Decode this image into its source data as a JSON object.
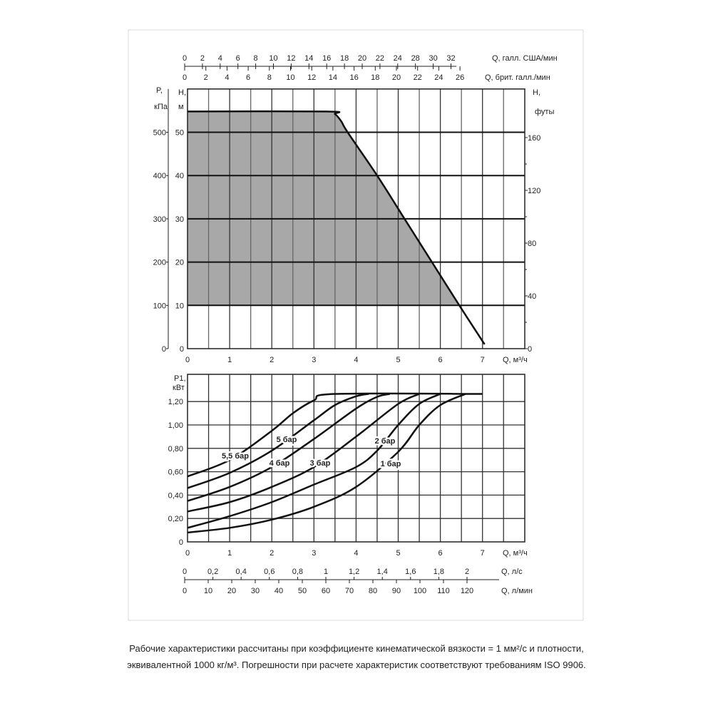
{
  "chart_data": [
    {
      "type": "area",
      "top_axes": [
        {
          "label": "Q, галл. США/мин",
          "tick_labels": [
            "0",
            "2",
            "4",
            "6",
            "8",
            "10",
            "12",
            "14",
            "16",
            "18",
            "20",
            "22",
            "24",
            "28",
            "30",
            "32"
          ]
        },
        {
          "label": "Q, брит. галл./мин",
          "tick_labels": [
            "0",
            "2",
            "4",
            "6",
            "8",
            "10",
            "12",
            "14",
            "16",
            "18",
            "20",
            "22",
            "24",
            "26"
          ]
        }
      ],
      "xlabel": "Q, м³/ч",
      "x_ticks": [
        0,
        1,
        2,
        3,
        4,
        5,
        6,
        7
      ],
      "xlim": [
        0,
        8
      ],
      "ylabel": [
        "H,",
        "м"
      ],
      "y_ticks": [
        0,
        10,
        20,
        30,
        40,
        50
      ],
      "ylim": [
        0,
        60
      ],
      "ylabel_pressure": [
        "P,",
        "кПа"
      ],
      "pressure_ticks": [
        0,
        100,
        200,
        300,
        400,
        500
      ],
      "ylabel_right": [
        "H,",
        "футы"
      ],
      "right_ticks": [
        0,
        40,
        80,
        120,
        160
      ],
      "grid": true,
      "shaded_region_min_H": 10,
      "fill_color": "#a8a8a8",
      "series": [
        {
          "x": [
            0,
            3.3,
            3.5,
            3.65,
            3.8,
            4.5,
            5.15,
            5.8,
            6.45,
            7.05
          ],
          "y": [
            54.8,
            54.8,
            54.2,
            52.5,
            50,
            40,
            30,
            20,
            10,
            1
          ]
        }
      ]
    },
    {
      "type": "line",
      "ylabel": [
        "P1,",
        "кВт"
      ],
      "y_ticks": [
        "0",
        "0,20",
        "0,40",
        "0,60",
        "0,80",
        "1,00",
        "1,20"
      ],
      "ylim": [
        0,
        1.43
      ],
      "xlabel": "Q, м³/ч",
      "x_ticks": [
        0,
        1,
        2,
        3,
        4,
        5,
        6,
        7
      ],
      "xlim": [
        0,
        8
      ],
      "grid": true,
      "bottom_axes": [
        {
          "label": "Q, л/с",
          "tick_labels": [
            "0",
            "0,2",
            "0,4",
            "0,6",
            "0,8",
            "1",
            "1,2",
            "1,4",
            "1,6",
            "1,8",
            "2"
          ]
        },
        {
          "label": "Q, л/мин",
          "tick_labels": [
            "0",
            "10",
            "20",
            "30",
            "40",
            "50",
            "60",
            "70",
            "80",
            "90",
            "100",
            "110",
            "120"
          ]
        }
      ],
      "series": [
        {
          "name": "5,5 бар",
          "x": [
            0,
            1,
            2,
            2.5,
            3,
            3.5,
            7
          ],
          "y": [
            0.56,
            0.7,
            0.95,
            1.1,
            1.21,
            1.265,
            1.265
          ]
        },
        {
          "name": "5 бар",
          "x": [
            0,
            1,
            2,
            3,
            3.5,
            4,
            4.3
          ],
          "y": [
            0.46,
            0.59,
            0.78,
            1.04,
            1.17,
            1.245,
            1.265
          ]
        },
        {
          "name": "4 бар",
          "x": [
            0,
            1,
            2,
            3,
            4,
            4.5,
            4.8
          ],
          "y": [
            0.35,
            0.47,
            0.64,
            0.88,
            1.14,
            1.24,
            1.265
          ]
        },
        {
          "name": "3 бар",
          "x": [
            0,
            1,
            2,
            3,
            4,
            5,
            5.5
          ],
          "y": [
            0.26,
            0.34,
            0.47,
            0.64,
            0.9,
            1.18,
            1.265
          ]
        },
        {
          "name": "2 бар",
          "x": [
            0,
            1,
            2,
            3,
            4,
            4.5,
            5,
            5.5,
            6
          ],
          "y": [
            0.12,
            0.22,
            0.34,
            0.49,
            0.64,
            0.78,
            1.0,
            1.18,
            1.265
          ]
        },
        {
          "name": "1 бар",
          "x": [
            0,
            1,
            2,
            3,
            4,
            5,
            5.5,
            6,
            6.6
          ],
          "y": [
            0.08,
            0.12,
            0.19,
            0.3,
            0.47,
            0.77,
            1.0,
            1.17,
            1.265
          ]
        }
      ]
    }
  ],
  "footnote": {
    "line1": "Рабочие характеристики рассчитаны при коэффициенте кинематической вязкости = 1 мм²/с и плотности,",
    "line2": "эквивалентной 1000 кг/м³. Погрешности при расчете характеристик соответствуют требованиям ISO 9906."
  }
}
